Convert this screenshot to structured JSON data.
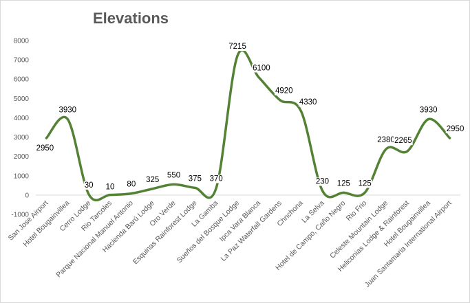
{
  "chart_data": {
    "type": "line",
    "title": "Elevations",
    "xlabel": "",
    "ylabel": "",
    "ylim": [
      -1000,
      8000
    ],
    "yticks": [
      -1000,
      0,
      1000,
      2000,
      3000,
      4000,
      5000,
      6000,
      7000,
      8000
    ],
    "grid": false,
    "legend": "none",
    "smooth": true,
    "line_color": "#548235",
    "categories": [
      "San Jose Airport",
      "Hotel Bougainvillea",
      "Cerro Lodge",
      "Rio Tarcoles",
      "Parque Nacional Manuel Antonio",
      "Hacienda Barú Lodge",
      "Oro Verde",
      "Esquinas Rainforest Lodge",
      "La Gamba",
      "Sueños del Bosque Lodge",
      "Ipca Vara Blanca",
      "La Paz Waterfall Gardens",
      "Chnchona",
      "La Selva",
      "Hotel de Campo, Caño Negro",
      "Rio Frio",
      "Celeste Mountain Lodge",
      "Heliconias Lodge & Rainforest",
      "Hotel Bougainvillea",
      "Juan Santamaria International Airport"
    ],
    "values": [
      2950,
      3930,
      30,
      10,
      80,
      325,
      550,
      375,
      370,
      7215,
      6100,
      4920,
      4330,
      230,
      125,
      125,
      2380,
      2265,
      3930,
      2950
    ],
    "data_labels": [
      "2950",
      "3930",
      "30",
      "10",
      "80",
      "325",
      "550",
      "375",
      "370",
      "7215",
      "6100",
      "4920",
      "4330",
      "230",
      "125",
      "125",
      "2380",
      "2265",
      "3930",
      "2950"
    ]
  }
}
